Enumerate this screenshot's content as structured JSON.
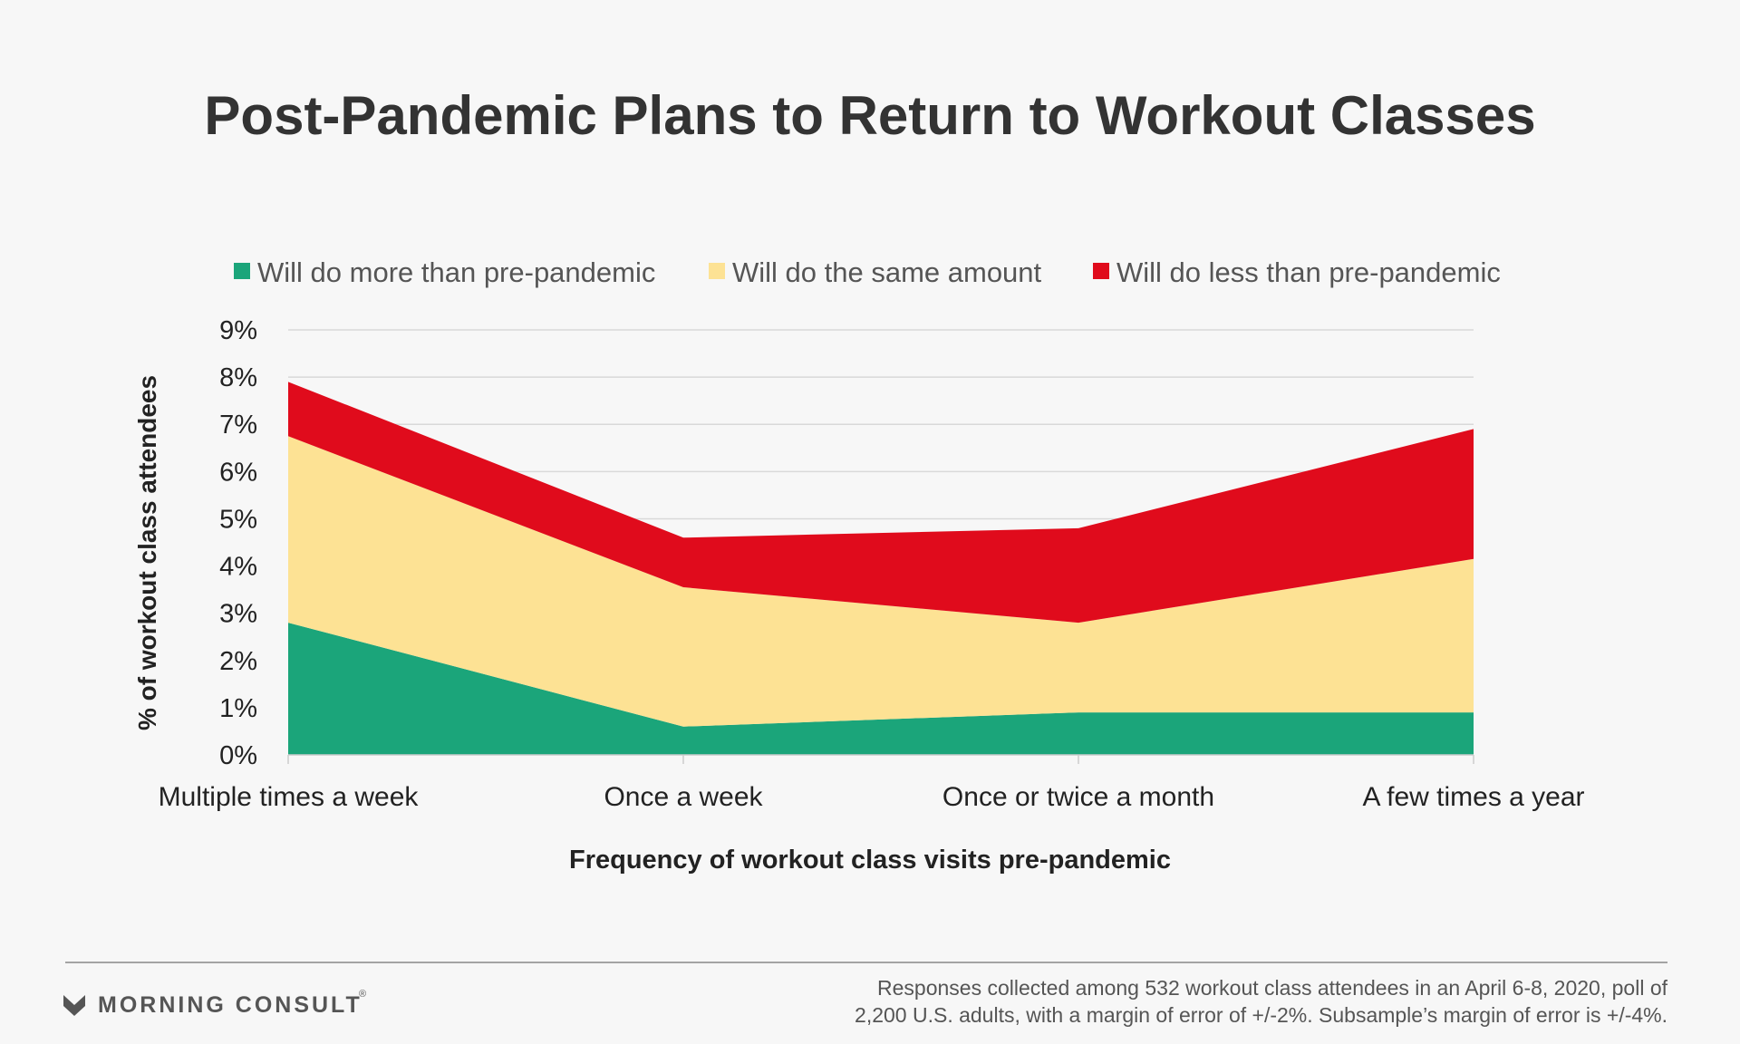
{
  "chart_data": {
    "type": "area",
    "stacked": true,
    "title": "Post-Pandemic Plans to Return to Workout Classes",
    "xlabel": "Frequency of workout class visits pre-pandemic",
    "ylabel": "% of workout class attendees",
    "categories": [
      "Multiple times a week",
      "Once a week",
      "Once or twice a month",
      "A few times a year"
    ],
    "y_ticks": [
      "0%",
      "1%",
      "2%",
      "3%",
      "4%",
      "5%",
      "6%",
      "7%",
      "8%",
      "9%"
    ],
    "ylim": [
      0,
      9
    ],
    "grid": true,
    "legend_position": "top",
    "series": [
      {
        "name": "Will do more than pre-pandemic",
        "color": "#1ba57a",
        "values": [
          2.8,
          0.6,
          0.9,
          0.9
        ]
      },
      {
        "name": "Will do the same amount",
        "color": "#fde294",
        "values": [
          3.95,
          2.95,
          1.9,
          3.25
        ]
      },
      {
        "name": "Will do less than pre-pandemic",
        "color": "#e00b1c",
        "values": [
          1.15,
          1.05,
          2.0,
          2.75
        ]
      }
    ]
  },
  "footer": {
    "brand": "MORNING CONSULT",
    "brand_mark": "®",
    "note_line1": "Responses collected among 532 workout class attendees in an April 6-8, 2020, poll of",
    "note_line2": "2,200 U.S. adults, with a margin of error of +/-2%. Subsample’s margin of error is +/-4%."
  }
}
